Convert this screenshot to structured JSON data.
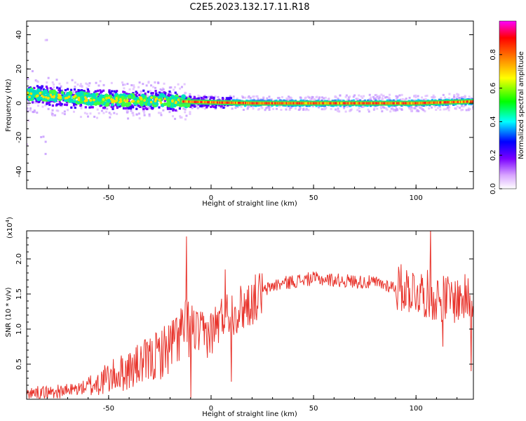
{
  "title": "C2E5.2023.132.17.11.R18",
  "chart_data": [
    {
      "type": "heatmap",
      "xlabel": "Height of straight line (km)",
      "ylabel": "Frequency (Hz)",
      "xlim": [
        -90,
        128
      ],
      "ylim": [
        -50,
        48
      ],
      "x_ticks": [
        -50,
        0,
        50,
        100
      ],
      "y_ticks": [
        -40,
        -20,
        0,
        20,
        40
      ],
      "colorbar": {
        "label": "Normalized spectral amplitude",
        "range": [
          0.0,
          1.0
        ],
        "ticks": [
          "0.0",
          "0.2",
          "0.4",
          "0.6",
          "0.8"
        ],
        "colors": [
          "#ffffff",
          "#d9a6ff",
          "#7a00ff",
          "#0000ff",
          "#00ffff",
          "#00ff00",
          "#ffff00",
          "#ff8000",
          "#ff0000",
          "#ff00ff"
        ]
      },
      "band_center_hz": [
        {
          "x": -88,
          "y": 5
        },
        {
          "x": -70,
          "y": 3
        },
        {
          "x": -50,
          "y": 2
        },
        {
          "x": -30,
          "y": 2
        },
        {
          "x": -15,
          "y": 1
        },
        {
          "x": 0,
          "y": 0.5
        },
        {
          "x": 20,
          "y": 0
        },
        {
          "x": 60,
          "y": 0
        },
        {
          "x": 100,
          "y": 0
        },
        {
          "x": 128,
          "y": 1
        }
      ]
    },
    {
      "type": "line",
      "xlabel": "Height of straight line (km)",
      "ylabel": "SNR (10 * v/v)",
      "multiplier": "(x10",
      "multiplier_exp": "4",
      "multiplier_close": ")",
      "xlim": [
        -90,
        128
      ],
      "ylim": [
        0,
        2.4
      ],
      "x_ticks": [
        -50,
        0,
        50,
        100
      ],
      "y_ticks": [
        "0.5",
        "1.0",
        "1.5",
        "2.0"
      ],
      "series": [
        {
          "color": "#e8342c",
          "trend": [
            [
              -90,
              0.08
            ],
            [
              -70,
              0.12
            ],
            [
              -60,
              0.18
            ],
            [
              -50,
              0.3
            ],
            [
              -40,
              0.42
            ],
            [
              -30,
              0.55
            ],
            [
              -20,
              0.75
            ],
            [
              -15,
              0.95
            ],
            [
              -10,
              1.05
            ],
            [
              -5,
              0.9
            ],
            [
              0,
              0.95
            ],
            [
              5,
              1.15
            ],
            [
              10,
              1.25
            ],
            [
              15,
              1.3
            ],
            [
              20,
              1.4
            ],
            [
              25,
              1.52
            ],
            [
              30,
              1.62
            ],
            [
              40,
              1.68
            ],
            [
              50,
              1.72
            ],
            [
              60,
              1.7
            ],
            [
              70,
              1.68
            ],
            [
              80,
              1.66
            ],
            [
              90,
              1.6
            ],
            [
              100,
              1.55
            ],
            [
              110,
              1.45
            ],
            [
              120,
              1.42
            ],
            [
              128,
              1.45
            ]
          ],
          "spikes": [
            [
              -12,
              2.32
            ],
            [
              -10,
              0.02
            ],
            [
              7,
              1.85
            ],
            [
              10,
              0.25
            ],
            [
              107,
              2.45
            ],
            [
              113,
              0.75
            ],
            [
              127,
              0.4
            ]
          ]
        }
      ]
    }
  ]
}
